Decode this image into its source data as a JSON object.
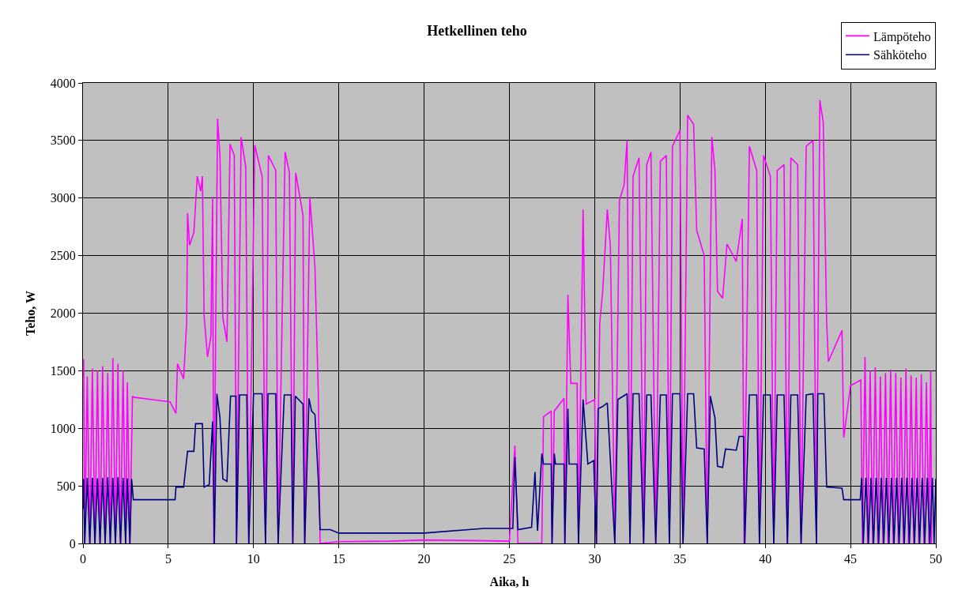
{
  "chart_data": {
    "type": "line",
    "title": "Hetkellinen teho",
    "xlabel": "Aika, h",
    "ylabel": "Teho, W",
    "xlim": [
      0,
      50
    ],
    "xticks": [
      0,
      5,
      10,
      15,
      20,
      25,
      30,
      35,
      40,
      45,
      50
    ],
    "ylim": [
      0,
      4000
    ],
    "yticks": [
      0,
      500,
      1000,
      1500,
      2000,
      2500,
      3000,
      3500,
      4000
    ],
    "grid": true,
    "legend": "top right",
    "marker": "none",
    "line_style": "solid",
    "series": [
      {
        "name": "Lämpöteho",
        "color": "#ff00ff",
        "x": [
          0,
          0.04,
          0.1,
          0.25,
          0.4,
          0.55,
          0.7,
          0.85,
          1.0,
          1.15,
          1.3,
          1.45,
          1.6,
          1.75,
          1.9,
          2.05,
          2.2,
          2.35,
          2.5,
          2.6,
          2.75,
          2.9,
          2.97,
          4.0,
          5.1,
          5.45,
          5.54,
          5.9,
          6.08,
          6.13,
          6.25,
          6.5,
          6.7,
          6.9,
          7.0,
          7.1,
          7.3,
          7.5,
          7.6,
          7.67,
          7.89,
          8.03,
          8.2,
          8.44,
          8.62,
          8.87,
          9.0,
          9.27,
          9.54,
          9.72,
          10.07,
          10.5,
          10.7,
          10.87,
          11.3,
          11.44,
          11.85,
          12.1,
          12.3,
          12.47,
          12.9,
          13.0,
          13.3,
          13.6,
          13.8,
          13.9,
          15,
          18,
          20,
          23,
          25,
          25.32,
          25.5,
          26.9,
          27.0,
          27.45,
          27.5,
          27.63,
          28.2,
          28.25,
          28.43,
          28.6,
          28.97,
          29.05,
          29.32,
          29.5,
          30.0,
          30.1,
          30.3,
          30.47,
          30.74,
          30.92,
          31.18,
          31.45,
          31.72,
          31.9,
          32.07,
          32.25,
          32.6,
          32.87,
          33.05,
          33.3,
          33.58,
          33.85,
          34.2,
          34.38,
          34.56,
          35.0,
          35.18,
          35.45,
          35.8,
          35.98,
          36.42,
          36.6,
          36.87,
          37.05,
          37.2,
          37.5,
          37.76,
          38.3,
          38.65,
          38.76,
          39.07,
          39.5,
          39.66,
          39.9,
          40.3,
          40.5,
          40.7,
          41.1,
          41.3,
          41.5,
          41.9,
          42.1,
          42.4,
          42.8,
          43.0,
          43.2,
          43.4,
          43.6,
          43.7,
          44.5,
          44.6,
          45.0,
          45.6,
          45.7,
          45.85,
          46.0,
          46.15,
          46.3,
          46.45,
          46.6,
          46.75,
          46.9,
          47.05,
          47.2,
          47.35,
          47.5,
          47.65,
          47.8,
          47.95,
          48.1,
          48.25,
          48.4,
          48.55,
          48.7,
          48.85,
          49.0,
          49.15,
          49.3,
          49.45,
          49.6,
          49.7,
          49.75
        ],
        "values": [
          1450,
          1600,
          0,
          1450,
          0,
          1520,
          0,
          1500,
          0,
          1540,
          0,
          1480,
          0,
          1610,
          0,
          1560,
          0,
          1500,
          0,
          1400,
          0,
          1280,
          1270,
          1250,
          1230,
          1130,
          1560,
          1430,
          1930,
          2870,
          2590,
          2700,
          3190,
          3060,
          3190,
          1980,
          1620,
          1800,
          3010,
          0,
          3690,
          3370,
          1960,
          1750,
          3470,
          3370,
          0,
          3530,
          3270,
          0,
          3460,
          3190,
          0,
          3370,
          3240,
          0,
          3400,
          3220,
          0,
          3220,
          2850,
          0,
          3010,
          2400,
          1280,
          0,
          15,
          20,
          30,
          25,
          20,
          850,
          0,
          0,
          1100,
          1150,
          0,
          1150,
          1260,
          0,
          2160,
          1390,
          1390,
          0,
          2900,
          1210,
          1250,
          0,
          1920,
          2190,
          2900,
          2580,
          0,
          2980,
          3110,
          3500,
          0,
          3190,
          3350,
          0,
          3290,
          3400,
          0,
          3320,
          3370,
          0,
          3450,
          3590,
          0,
          3720,
          3640,
          2720,
          2500,
          0,
          3530,
          3240,
          2190,
          2130,
          2600,
          2450,
          2820,
          0,
          3450,
          3240,
          0,
          3370,
          3190,
          0,
          3240,
          3290,
          0,
          3350,
          3290,
          0,
          3450,
          3500,
          0,
          3850,
          3660,
          1920,
          1580,
          1850,
          920,
          1370,
          1420,
          0,
          1620,
          0,
          1500,
          0,
          1530,
          0,
          1450,
          0,
          1480,
          0,
          1510,
          0,
          1480,
          0,
          1440,
          0,
          1520,
          0,
          1460,
          0,
          1440,
          0,
          1470,
          0,
          1400,
          0,
          1500,
          0
        ]
      },
      {
        "name": "Sähköteho",
        "color": "#000080",
        "x": [
          0,
          0.04,
          0.1,
          0.25,
          0.4,
          0.55,
          0.7,
          0.85,
          1.0,
          1.15,
          1.3,
          1.45,
          1.6,
          1.75,
          1.9,
          2.05,
          2.2,
          2.35,
          2.5,
          2.6,
          2.75,
          2.85,
          2.95,
          5.4,
          5.45,
          5.9,
          6.13,
          6.5,
          6.6,
          7.0,
          7.1,
          7.4,
          7.6,
          7.7,
          7.85,
          8.03,
          8.2,
          8.44,
          8.65,
          8.97,
          9.0,
          9.18,
          9.6,
          9.72,
          10.0,
          10.5,
          10.7,
          10.85,
          11.3,
          11.44,
          11.8,
          12.2,
          12.3,
          12.45,
          12.9,
          13.0,
          13.25,
          13.4,
          13.6,
          13.8,
          13.9,
          14.5,
          15,
          20,
          23.5,
          25.2,
          25.32,
          25.5,
          26.3,
          26.5,
          26.65,
          26.9,
          27.0,
          27.45,
          27.5,
          27.63,
          27.7,
          28.2,
          28.25,
          28.43,
          28.5,
          28.97,
          29.05,
          29.32,
          29.6,
          29.94,
          30.1,
          30.2,
          30.47,
          30.74,
          31.18,
          31.36,
          31.9,
          32.07,
          32.25,
          32.6,
          32.87,
          33.05,
          33.3,
          33.58,
          33.85,
          34.2,
          34.38,
          34.56,
          35.0,
          35.18,
          35.45,
          35.8,
          35.98,
          36.42,
          36.6,
          36.78,
          37.05,
          37.2,
          37.5,
          37.67,
          38.3,
          38.47,
          38.73,
          38.8,
          39.07,
          39.5,
          39.66,
          39.9,
          40.3,
          40.5,
          40.7,
          41.1,
          41.3,
          41.5,
          41.9,
          42.1,
          42.4,
          42.8,
          43.0,
          43.08,
          43.44,
          43.6,
          44.5,
          44.6,
          45.57,
          45.65,
          45.75,
          45.9,
          46.05,
          46.2,
          46.35,
          46.5,
          46.65,
          46.8,
          46.95,
          47.1,
          47.25,
          47.4,
          47.55,
          47.7,
          47.85,
          48.0,
          48.15,
          48.3,
          48.45,
          48.6,
          48.75,
          48.9,
          49.05,
          49.2,
          49.35,
          49.5,
          49.65,
          49.8,
          49.9,
          50
        ],
        "values": [
          300,
          560,
          0,
          570,
          0,
          570,
          0,
          565,
          0,
          570,
          0,
          575,
          0,
          570,
          0,
          575,
          0,
          570,
          0,
          565,
          0,
          560,
          380,
          380,
          490,
          490,
          800,
          800,
          1040,
          1040,
          490,
          510,
          1060,
          0,
          1300,
          1090,
          560,
          540,
          1280,
          1280,
          0,
          1290,
          1290,
          0,
          1300,
          1300,
          0,
          1300,
          1300,
          0,
          1290,
          1290,
          0,
          1280,
          1210,
          0,
          1260,
          1150,
          1120,
          540,
          120,
          120,
          90,
          90,
          130,
          130,
          750,
          120,
          140,
          620,
          110,
          780,
          690,
          690,
          0,
          780,
          690,
          690,
          0,
          1170,
          690,
          690,
          0,
          1250,
          690,
          720,
          0,
          1170,
          1190,
          1220,
          0,
          1250,
          1300,
          0,
          1300,
          1300,
          0,
          1290,
          1290,
          0,
          1290,
          1290,
          0,
          1300,
          1300,
          0,
          1300,
          1300,
          830,
          820,
          0,
          1280,
          1090,
          670,
          660,
          820,
          810,
          930,
          930,
          0,
          1290,
          1290,
          0,
          1290,
          1290,
          0,
          1290,
          1290,
          0,
          1290,
          1290,
          0,
          1290,
          1300,
          0,
          1300,
          1300,
          490,
          480,
          380,
          380,
          570,
          0,
          570,
          0,
          570,
          0,
          570,
          0,
          570,
          0,
          570,
          0,
          570,
          0,
          570,
          0,
          570,
          0,
          570,
          0,
          570,
          0,
          570,
          0,
          570,
          0,
          570,
          0,
          570,
          0,
          560
        ]
      }
    ]
  }
}
